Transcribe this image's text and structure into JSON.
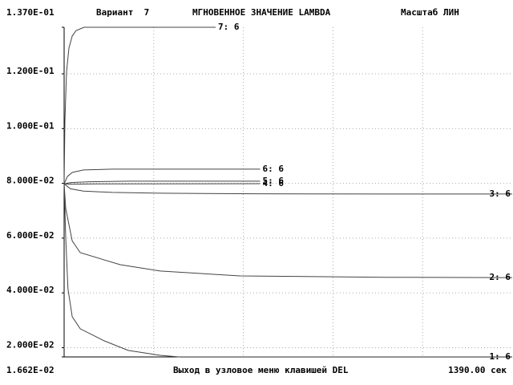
{
  "chart_data": {
    "type": "line",
    "variant": "Вариант  7",
    "title": "МГНОВЕННОЕ ЗНАЧЕНИЕ LAMBDA",
    "scale_label": "Масштаб ЛИН",
    "footer_text": "Выход в узловое меню клавишей DEL",
    "time_label": "1390.00 сек",
    "xlim": [
      0,
      1390
    ],
    "xticks": [
      0,
      278,
      556,
      834,
      1112,
      1390
    ],
    "ylim": [
      0.01662,
      0.137
    ],
    "yticks": [
      {
        "value": 0.01662,
        "label": "1.662E-02"
      },
      {
        "value": 0.02,
        "label": "2.000E-02"
      },
      {
        "value": 0.04,
        "label": "4.000E-02"
      },
      {
        "value": 0.06,
        "label": "6.000E-02"
      },
      {
        "value": 0.08,
        "label": "8.000E-02"
      },
      {
        "value": 0.1,
        "label": "1.000E-01"
      },
      {
        "value": 0.12,
        "label": "1.200E-01"
      },
      {
        "value": 0.137,
        "label": "1.370E-01"
      }
    ],
    "grid": true,
    "series": [
      {
        "name": "1: 6",
        "color": "#444444",
        "x": [
          0,
          5,
          12,
          25,
          50,
          124,
          199,
          298,
          360,
          1390
        ],
        "values": [
          0.0798,
          0.06,
          0.0415,
          0.0313,
          0.0269,
          0.0225,
          0.019,
          0.0172,
          0.0166,
          0.0166
        ]
      },
      {
        "name": "2: 6",
        "color": "#444444",
        "x": [
          0,
          5,
          25,
          50,
          174,
          298,
          546,
          1000,
          1390
        ],
        "values": [
          0.0798,
          0.0708,
          0.059,
          0.0547,
          0.0503,
          0.048,
          0.0462,
          0.0457,
          0.0456
        ]
      },
      {
        "name": "3: 6",
        "color": "#444444",
        "x": [
          0,
          20,
          60,
          150,
          300,
          600,
          1000,
          1390
        ],
        "values": [
          0.0798,
          0.078,
          0.0772,
          0.0767,
          0.0764,
          0.0762,
          0.0761,
          0.0761
        ]
      },
      {
        "name": "4: 6",
        "color": "#444444",
        "x": [
          0,
          20,
          100,
          608
        ],
        "values": [
          0.0798,
          0.0797,
          0.0798,
          0.0799
        ]
      },
      {
        "name": "5: 6",
        "color": "#444444",
        "x": [
          0,
          20,
          80,
          200,
          608
        ],
        "values": [
          0.0798,
          0.0803,
          0.0806,
          0.0808,
          0.0808
        ]
      },
      {
        "name": "6: 6",
        "color": "#444444",
        "x": [
          0,
          10,
          25,
          60,
          150,
          608
        ],
        "values": [
          0.0798,
          0.0825,
          0.084,
          0.0849,
          0.0852,
          0.0852
        ]
      },
      {
        "name": "7: 6",
        "color": "#444444",
        "x": [
          0,
          2.5,
          7.4,
          15,
          25,
          37,
          62,
          470
        ],
        "values": [
          0.08,
          0.103,
          0.1206,
          0.1294,
          0.1338,
          0.1358,
          0.137,
          0.137
        ]
      }
    ]
  }
}
